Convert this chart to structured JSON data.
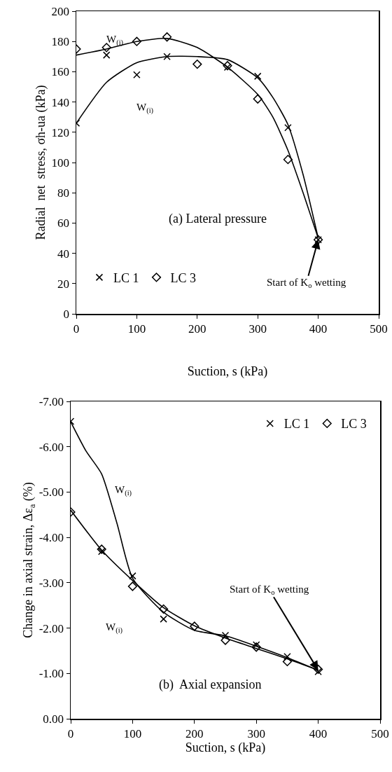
{
  "chart_data": [
    {
      "type": "scatter",
      "xlabel": "Suction, s (kPa)",
      "ylabel": "Radial  net  stress, σh-ua (kPa)",
      "xlim": [
        0,
        500
      ],
      "xticks": [
        0,
        100,
        200,
        300,
        400,
        500
      ],
      "ylim": [
        0,
        200
      ],
      "yticks": [
        0,
        20,
        40,
        60,
        80,
        100,
        120,
        140,
        160,
        180,
        200
      ],
      "grid": false,
      "legend": "bottom left",
      "annotations": [
        "(a) Lateral pressure",
        {
          "text": "Start of K$_{o}$ wetting",
          "x": 400,
          "y": 49
        },
        "W$_{(i)}$",
        "W$_{(i)}$"
      ],
      "series": [
        {
          "name": "LC 1",
          "color": "#000000",
          "marker": "cross",
          "x": [
            0,
            50,
            100,
            150,
            250,
            300,
            350,
            400
          ],
          "values": [
            126,
            171,
            158,
            170,
            163,
            157,
            123,
            49
          ]
        },
        {
          "name": "LC 3",
          "color": "#000000",
          "marker": "diamond",
          "x": [
            0,
            50,
            100,
            150,
            200,
            250,
            300,
            350,
            400
          ],
          "values": [
            175,
            176,
            180,
            183,
            165,
            164,
            142,
            102,
            49
          ]
        },
        {
          "type": "line",
          "color": "#000000",
          "marker": "none",
          "line_style": "solid",
          "x": [
            0,
            50,
            100,
            150,
            200,
            250,
            300,
            325,
            350,
            375,
            400
          ],
          "values": [
            126,
            153,
            166,
            170,
            170,
            168,
            156,
            143,
            125,
            92,
            50
          ]
        },
        {
          "type": "line",
          "color": "#000000",
          "marker": "none",
          "line_style": "solid",
          "x": [
            0,
            50,
            100,
            150,
            200,
            250,
            300,
            325,
            350,
            375,
            400
          ],
          "values": [
            171,
            175,
            180,
            182,
            176,
            163,
            145,
            130,
            108,
            80,
            50
          ]
        }
      ]
    },
    {
      "type": "scatter",
      "xlabel": "Suction, s (kPa)",
      "ylabel": "Change in axial strain, Δε$_{a}$ (%)",
      "xlim": [
        0,
        500
      ],
      "xticks": [
        0,
        100,
        200,
        300,
        400,
        500
      ],
      "ylim": [
        0,
        -7
      ],
      "yticks": [
        {
          "value": 0,
          "label": "0.00"
        },
        {
          "value": -1,
          "label": "-1.00"
        },
        {
          "value": -2,
          "label": "-2.00"
        },
        {
          "value": -3,
          "label": "-3.00"
        },
        {
          "value": -4,
          "label": "-4.00"
        },
        {
          "value": -5,
          "label": "-5.00"
        },
        {
          "value": -6,
          "label": "-6.00"
        },
        {
          "value": -7,
          "label": "-7.00"
        }
      ],
      "grid": false,
      "legend": "top right",
      "annotations": [
        "(b)  Axial expansion",
        {
          "text": "Start of K$_{o}$ wetting",
          "x": 400,
          "y": -1.07
        },
        "W$_{(i)}$",
        "W$_{(i)}$"
      ],
      "series": [
        {
          "name": "LC 1",
          "color": "#000000",
          "marker": "cross",
          "x": [
            0,
            50,
            100,
            150,
            250,
            300,
            350,
            400
          ],
          "values": [
            -6.56,
            -3.69,
            -3.15,
            -2.2,
            -1.84,
            -1.63,
            -1.37,
            -1.04
          ]
        },
        {
          "name": "LC 3",
          "color": "#000000",
          "marker": "diamond",
          "x": [
            0,
            50,
            100,
            150,
            200,
            250,
            300,
            350,
            400
          ],
          "values": [
            -4.56,
            -3.74,
            -2.92,
            -2.42,
            -2.04,
            -1.73,
            -1.58,
            -1.26,
            -1.09
          ]
        },
        {
          "type": "line",
          "color": "#000000",
          "marker": "none",
          "line_style": "solid",
          "x": [
            0,
            25,
            50,
            75,
            100,
            150,
            200,
            250,
            300,
            350,
            400
          ],
          "values": [
            -6.55,
            -5.9,
            -5.4,
            -4.3,
            -3.1,
            -2.35,
            -1.95,
            -1.83,
            -1.6,
            -1.35,
            -1.07
          ]
        },
        {
          "type": "line",
          "color": "#000000",
          "marker": "none",
          "line_style": "solid",
          "x": [
            0,
            50,
            100,
            150,
            200,
            250,
            300,
            350,
            400
          ],
          "values": [
            -4.6,
            -3.72,
            -3.05,
            -2.45,
            -2.05,
            -1.78,
            -1.55,
            -1.32,
            -1.07
          ]
        }
      ]
    }
  ]
}
